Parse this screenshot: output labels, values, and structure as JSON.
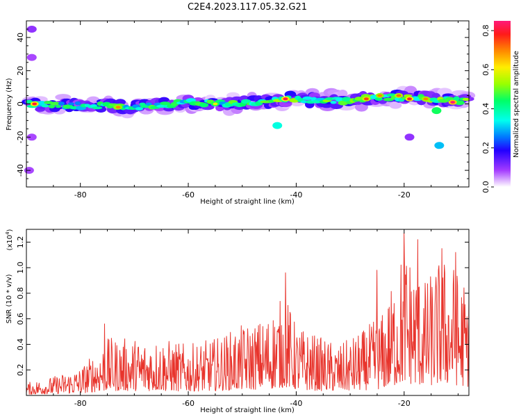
{
  "title": "C2E4.2023.117.05.32.G21",
  "chart_data": [
    {
      "type": "heatmap",
      "xlabel": "Height of straight line (km)",
      "ylabel": "Frequency (Hz)",
      "xlim": [
        -90,
        -8
      ],
      "ylim": [
        -50,
        50
      ],
      "x_ticks": [
        -80,
        -60,
        -40,
        -20
      ],
      "y_ticks": [
        -40,
        -20,
        0,
        20,
        40
      ],
      "colorbar": {
        "label": "Normalized spectral amplitude",
        "range": [
          0.0,
          0.85
        ],
        "ticks": [
          "0.0",
          "0.2",
          "0.4",
          "0.6",
          "0.8"
        ],
        "colormap": "rainbow (white-violet-blue-cyan-green-yellow-red-magenta)"
      },
      "band": {
        "description": "continuous band of spectral amplitude centered near 0 Hz across the full height range, with scattered weaker patches below",
        "center_freq_hz": [
          [
            -90,
            0
          ],
          [
            -80,
            -1
          ],
          [
            -70,
            -2
          ],
          [
            -60,
            1
          ],
          [
            -50,
            0
          ],
          [
            -42,
            3
          ],
          [
            -35,
            2
          ],
          [
            -30,
            2
          ],
          [
            -25,
            4
          ],
          [
            -20,
            4
          ],
          [
            -15,
            3
          ],
          [
            -10,
            2
          ],
          [
            -8,
            3
          ]
        ],
        "peaks": [
          {
            "x": -88.5,
            "y": 0,
            "v": 0.8
          },
          {
            "x": -73,
            "y": -2,
            "v": 0.7
          },
          {
            "x": -55,
            "y": 0,
            "v": 0.6
          },
          {
            "x": -42,
            "y": 3,
            "v": 0.82
          },
          {
            "x": -27,
            "y": 3,
            "v": 0.75
          },
          {
            "x": -24.5,
            "y": 5,
            "v": 0.7
          },
          {
            "x": -21,
            "y": 5,
            "v": 0.72
          },
          {
            "x": -19,
            "y": 3,
            "v": 0.8
          },
          {
            "x": -16,
            "y": 3,
            "v": 0.7
          },
          {
            "x": -11,
            "y": 1,
            "v": 0.85
          }
        ],
        "isolated_patches": [
          {
            "x": -43.5,
            "y": -13,
            "v": 0.35
          },
          {
            "x": -13.5,
            "y": -25,
            "v": 0.3
          },
          {
            "x": -14,
            "y": -4,
            "v": 0.45
          },
          {
            "x": -19,
            "y": -20,
            "v": 0.1
          },
          {
            "x": -89,
            "y": 45,
            "v": 0.1
          },
          {
            "x": -89,
            "y": 28,
            "v": 0.08
          },
          {
            "x": -89,
            "y": -20,
            "v": 0.08
          },
          {
            "x": -89.5,
            "y": -40,
            "v": 0.08
          }
        ]
      }
    },
    {
      "type": "line",
      "xlabel": "Height of straight line (km)",
      "ylabel": "SNR (10 * v/v)",
      "scale_label": "(x10",
      "scale_exp": "4",
      "scale_close": ")",
      "xlim": [
        -90,
        -8
      ],
      "ylim": [
        0.0,
        1.3
      ],
      "x_ticks": [
        -80,
        -60,
        -40,
        -20
      ],
      "y_ticks": [
        0.2,
        0.4,
        0.6,
        0.8,
        1.0,
        1.2
      ],
      "color": "#e8342c",
      "envelope": [
        [
          -90,
          0.1
        ],
        [
          -85,
          0.15
        ],
        [
          -80,
          0.22
        ],
        [
          -75,
          0.45
        ],
        [
          -72,
          0.45
        ],
        [
          -65,
          0.45
        ],
        [
          -60,
          0.4
        ],
        [
          -55,
          0.45
        ],
        [
          -50,
          0.55
        ],
        [
          -46,
          0.6
        ],
        [
          -42,
          0.8
        ],
        [
          -40,
          0.55
        ],
        [
          -35,
          0.45
        ],
        [
          -32,
          0.4
        ],
        [
          -28,
          0.5
        ],
        [
          -24,
          0.65
        ],
        [
          -22,
          0.9
        ],
        [
          -20,
          1.2
        ],
        [
          -18,
          1.05
        ],
        [
          -16,
          0.9
        ],
        [
          -13,
          1.1
        ],
        [
          -11,
          1.05
        ],
        [
          -8,
          0.85
        ]
      ],
      "peaks": [
        {
          "x": -75.5,
          "y": 0.56
        },
        {
          "x": -42,
          "y": 0.96
        },
        {
          "x": -25,
          "y": 0.98
        },
        {
          "x": -20,
          "y": 1.27
        },
        {
          "x": -17.5,
          "y": 1.22
        },
        {
          "x": -13,
          "y": 1.15
        },
        {
          "x": -10.5,
          "y": 1.12
        }
      ]
    }
  ]
}
